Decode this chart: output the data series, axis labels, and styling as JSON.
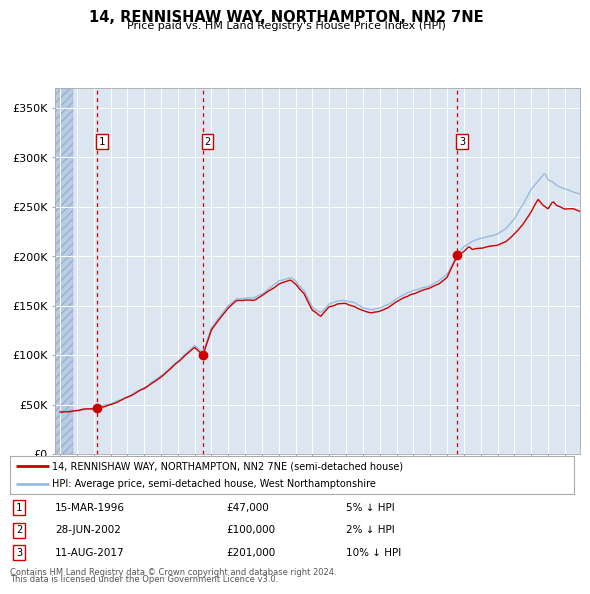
{
  "title": "14, RENNISHAW WAY, NORTHAMPTON, NN2 7NE",
  "subtitle": "Price paid vs. HM Land Registry's House Price Index (HPI)",
  "legend_line1": "14, RENNISHAW WAY, NORTHAMPTON, NN2 7NE (semi-detached house)",
  "legend_line2": "HPI: Average price, semi-detached house, West Northamptonshire",
  "transactions": [
    {
      "num": 1,
      "date": "15-MAR-1996",
      "price": 47000,
      "pct": "5%",
      "dir": "↓",
      "x": 1996.204
    },
    {
      "num": 2,
      "date": "28-JUN-2002",
      "price": 100000,
      "pct": "2%",
      "dir": "↓",
      "x": 2002.493
    },
    {
      "num": 3,
      "date": "11-AUG-2017",
      "price": 201000,
      "pct": "10%",
      "dir": "↓",
      "x": 2017.609
    }
  ],
  "footer1": "Contains HM Land Registry data © Crown copyright and database right 2024.",
  "footer2": "This data is licensed under the Open Government Licence v3.0.",
  "xlim": [
    1993.7,
    2024.9
  ],
  "ylim": [
    0,
    370000
  ],
  "yticks": [
    0,
    50000,
    100000,
    150000,
    200000,
    250000,
    300000,
    350000
  ],
  "ytick_labels": [
    "£0",
    "£50K",
    "£100K",
    "£150K",
    "£200K",
    "£250K",
    "£300K",
    "£350K"
  ],
  "hatch_end_year": 1994.75,
  "bg_color": "#dce6f1",
  "hatch_color": "#b8cce4",
  "grid_color": "#ffffff",
  "property_line_color": "#cc0000",
  "hpi_line_color": "#99bbdd",
  "dot_color": "#cc0000",
  "vline_color": "#cc0000"
}
